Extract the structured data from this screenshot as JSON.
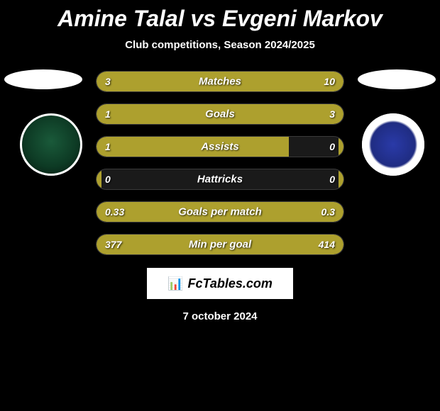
{
  "title": "Amine Talal vs Evgeni Markov",
  "subtitle": "Club competitions, Season 2024/2025",
  "date": "7 october 2024",
  "brand": {
    "text": "FcTables.com",
    "icon": "📊"
  },
  "colors": {
    "background": "#000000",
    "bar_fill": "#ada02e",
    "bar_track": "#1a1a1a",
    "bar_border": "#3a3a3a",
    "text": "#ffffff"
  },
  "stats": [
    {
      "label": "Matches",
      "left_val": "3",
      "right_val": "10",
      "left_pct": 23,
      "right_pct": 77
    },
    {
      "label": "Goals",
      "left_val": "1",
      "right_val": "3",
      "left_pct": 25,
      "right_pct": 75
    },
    {
      "label": "Assists",
      "left_val": "1",
      "right_val": "0",
      "left_pct": 78,
      "right_pct": 2
    },
    {
      "label": "Hattricks",
      "left_val": "0",
      "right_val": "0",
      "left_pct": 2,
      "right_pct": 2
    },
    {
      "label": "Goals per match",
      "left_val": "0.33",
      "right_val": "0.3",
      "left_pct": 52,
      "right_pct": 48
    },
    {
      "label": "Min per goal",
      "left_val": "377",
      "right_val": "414",
      "left_pct": 48,
      "right_pct": 52
    }
  ]
}
